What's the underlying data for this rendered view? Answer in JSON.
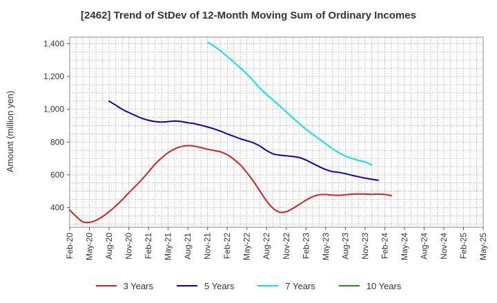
{
  "chart_data": {
    "type": "line",
    "title": "[2462]  Trend of StDev of 12-Month Moving Sum of Ordinary Incomes",
    "xlabel": "",
    "ylabel": "Amount (million yen)",
    "ylim": [
      280,
      1440
    ],
    "yticks": [
      400,
      600,
      800,
      1000,
      1200,
      1400
    ],
    "ytick_labels": [
      "400",
      "600",
      "800",
      "1,000",
      "1,200",
      "1,400"
    ],
    "x_categories": [
      "Feb-20",
      "May-20",
      "Aug-20",
      "Nov-20",
      "Feb-21",
      "May-21",
      "Aug-21",
      "Nov-21",
      "Feb-22",
      "May-22",
      "Aug-22",
      "Nov-22",
      "Feb-23",
      "May-23",
      "Aug-23",
      "Nov-23",
      "Feb-24",
      "May-24",
      "Aug-24",
      "Nov-24",
      "Feb-25",
      "May-25"
    ],
    "grid": true,
    "legend_position": "bottom",
    "series": [
      {
        "name": "3 Years",
        "color": "#e31a1c",
        "points": [
          [
            0,
            385
          ],
          [
            1,
            345
          ],
          [
            2,
            313
          ],
          [
            3,
            310
          ],
          [
            4,
            322
          ],
          [
            5,
            345
          ],
          [
            6,
            375
          ],
          [
            7,
            410
          ],
          [
            8,
            448
          ],
          [
            9,
            490
          ],
          [
            10,
            530
          ],
          [
            11,
            572
          ],
          [
            12,
            618
          ],
          [
            13,
            665
          ],
          [
            14,
            703
          ],
          [
            15,
            735
          ],
          [
            16,
            758
          ],
          [
            17,
            773
          ],
          [
            18,
            778
          ],
          [
            19,
            775
          ],
          [
            20,
            766
          ],
          [
            21,
            756
          ],
          [
            22,
            748
          ],
          [
            23,
            740
          ],
          [
            24,
            722
          ],
          [
            25,
            695
          ],
          [
            26,
            660
          ],
          [
            27,
            613
          ],
          [
            28,
            560
          ],
          [
            29,
            500
          ],
          [
            30,
            440
          ],
          [
            31,
            395
          ],
          [
            32,
            372
          ],
          [
            33,
            375
          ],
          [
            34,
            395
          ],
          [
            35,
            420
          ],
          [
            36,
            445
          ],
          [
            37,
            466
          ],
          [
            38,
            478
          ],
          [
            39,
            480
          ],
          [
            40,
            476
          ],
          [
            41,
            475
          ],
          [
            42,
            478
          ],
          [
            43,
            482
          ],
          [
            44,
            483
          ],
          [
            45,
            482
          ],
          [
            46,
            481
          ],
          [
            47,
            482
          ],
          [
            48,
            480
          ],
          [
            49,
            473
          ]
        ]
      },
      {
        "name": "5 Years",
        "color": "#0000cd",
        "points": [
          [
            6,
            1050
          ],
          [
            7,
            1025
          ],
          [
            8,
            1000
          ],
          [
            9,
            980
          ],
          [
            10,
            962
          ],
          [
            11,
            945
          ],
          [
            12,
            933
          ],
          [
            13,
            925
          ],
          [
            14,
            922
          ],
          [
            15,
            925
          ],
          [
            16,
            928
          ],
          [
            17,
            925
          ],
          [
            18,
            918
          ],
          [
            19,
            912
          ],
          [
            20,
            903
          ],
          [
            21,
            892
          ],
          [
            22,
            880
          ],
          [
            23,
            866
          ],
          [
            24,
            850
          ],
          [
            25,
            835
          ],
          [
            26,
            820
          ],
          [
            27,
            808
          ],
          [
            28,
            795
          ],
          [
            29,
            775
          ],
          [
            30,
            748
          ],
          [
            31,
            728
          ],
          [
            32,
            720
          ],
          [
            33,
            716
          ],
          [
            34,
            712
          ],
          [
            35,
            705
          ],
          [
            36,
            690
          ],
          [
            37,
            670
          ],
          [
            38,
            650
          ],
          [
            39,
            632
          ],
          [
            40,
            620
          ],
          [
            41,
            615
          ],
          [
            42,
            607
          ],
          [
            43,
            597
          ],
          [
            44,
            588
          ],
          [
            45,
            580
          ],
          [
            46,
            573
          ],
          [
            47,
            567
          ]
        ]
      },
      {
        "name": "7 Years",
        "color": "#00e5ee",
        "points": [
          [
            21,
            1408
          ],
          [
            22,
            1385
          ],
          [
            23,
            1355
          ],
          [
            24,
            1322
          ],
          [
            25,
            1288
          ],
          [
            26,
            1252
          ],
          [
            27,
            1215
          ],
          [
            28,
            1172
          ],
          [
            29,
            1128
          ],
          [
            30,
            1090
          ],
          [
            31,
            1055
          ],
          [
            32,
            1020
          ],
          [
            33,
            983
          ],
          [
            34,
            947
          ],
          [
            35,
            912
          ],
          [
            36,
            878
          ],
          [
            37,
            848
          ],
          [
            38,
            818
          ],
          [
            39,
            790
          ],
          [
            40,
            760
          ],
          [
            41,
            735
          ],
          [
            42,
            715
          ],
          [
            43,
            700
          ],
          [
            44,
            688
          ],
          [
            45,
            678
          ],
          [
            46,
            660
          ]
        ]
      },
      {
        "name": "10 Years",
        "color": "#228b22",
        "points": []
      }
    ]
  },
  "legend": {
    "items": [
      {
        "label": "3 Years",
        "color": "#e31a1c"
      },
      {
        "label": "5 Years",
        "color": "#0000cd"
      },
      {
        "label": "7 Years",
        "color": "#00e5ee"
      },
      {
        "label": "10 Years",
        "color": "#228b22"
      }
    ]
  }
}
